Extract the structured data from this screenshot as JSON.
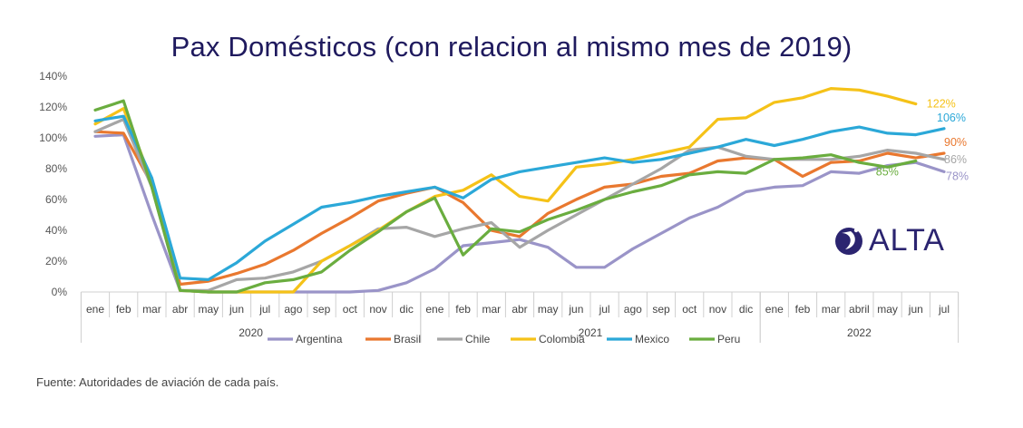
{
  "chart_data": {
    "type": "line",
    "title": "Pax Domésticos (con relacion al mismo mes de 2019)",
    "xlabel": "",
    "ylabel": "",
    "ylim": [
      0,
      140
    ],
    "yticks": [
      "0%",
      "20%",
      "40%",
      "60%",
      "80%",
      "100%",
      "120%",
      "140%"
    ],
    "grid": false,
    "legend_position": "bottom",
    "categories": [
      "ene",
      "feb",
      "mar",
      "abr",
      "may",
      "jun",
      "jul",
      "ago",
      "sep",
      "oct",
      "nov",
      "dic",
      "ene",
      "feb",
      "mar",
      "abr",
      "may",
      "jun",
      "jul",
      "ago",
      "sep",
      "oct",
      "nov",
      "dic",
      "ene",
      "feb",
      "mar",
      "abril",
      "may",
      "jun",
      "jul"
    ],
    "year_groups": [
      {
        "label": "2020",
        "start": 0,
        "end": 11
      },
      {
        "label": "2021",
        "start": 12,
        "end": 23
      },
      {
        "label": "2022",
        "start": 24,
        "end": 30
      }
    ],
    "series": [
      {
        "name": "Argentina",
        "color": "#9a94c8",
        "end_label": "78%",
        "values": [
          101,
          102,
          50,
          1,
          0,
          0,
          0,
          0,
          0,
          0,
          1,
          6,
          15,
          30,
          32,
          34,
          29,
          16,
          16,
          28,
          38,
          48,
          55,
          65,
          68,
          69,
          78,
          77,
          82,
          84,
          78
        ]
      },
      {
        "name": "Brasil",
        "color": "#e9782f",
        "end_label": "90%",
        "values": [
          104,
          103,
          70,
          5,
          7,
          12,
          18,
          27,
          38,
          48,
          59,
          64,
          68,
          58,
          40,
          36,
          51,
          60,
          68,
          70,
          75,
          77,
          85,
          87,
          86,
          75,
          84,
          85,
          90,
          87,
          90
        ]
      },
      {
        "name": "Chile",
        "color": "#a6a6a6",
        "end_label": "86%",
        "values": [
          104,
          112,
          68,
          1,
          1,
          8,
          9,
          13,
          20,
          30,
          41,
          42,
          36,
          41,
          45,
          29,
          40,
          50,
          60,
          70,
          80,
          92,
          94,
          88,
          86,
          86,
          86,
          88,
          92,
          90,
          86
        ]
      },
      {
        "name": "Colombia",
        "color": "#f5c218",
        "end_label": "122%",
        "values": [
          109,
          119,
          72,
          1,
          0,
          0,
          0,
          0,
          20,
          30,
          40,
          52,
          62,
          66,
          76,
          62,
          59,
          81,
          83,
          86,
          90,
          94,
          112,
          113,
          123,
          126,
          132,
          131,
          127,
          122,
          null
        ]
      },
      {
        "name": "Mexico",
        "color": "#2ba8d8",
        "end_label": "106%",
        "values": [
          111,
          114,
          74,
          9,
          8,
          19,
          33,
          44,
          55,
          58,
          62,
          65,
          68,
          61,
          73,
          78,
          81,
          84,
          87,
          84,
          86,
          90,
          94,
          99,
          95,
          99,
          104,
          107,
          103,
          102,
          106
        ]
      },
      {
        "name": "Peru",
        "color": "#6aad3f",
        "end_label": "85%",
        "values": [
          118,
          124,
          68,
          1,
          0,
          0,
          6,
          8,
          13,
          27,
          39,
          52,
          61,
          24,
          41,
          39,
          47,
          53,
          60,
          65,
          69,
          76,
          78,
          77,
          86,
          87,
          89,
          84,
          81,
          85,
          null
        ]
      }
    ]
  },
  "source_note": "Fuente: Autoridades de aviación de cada país.",
  "logo": {
    "text": "ALTA"
  }
}
